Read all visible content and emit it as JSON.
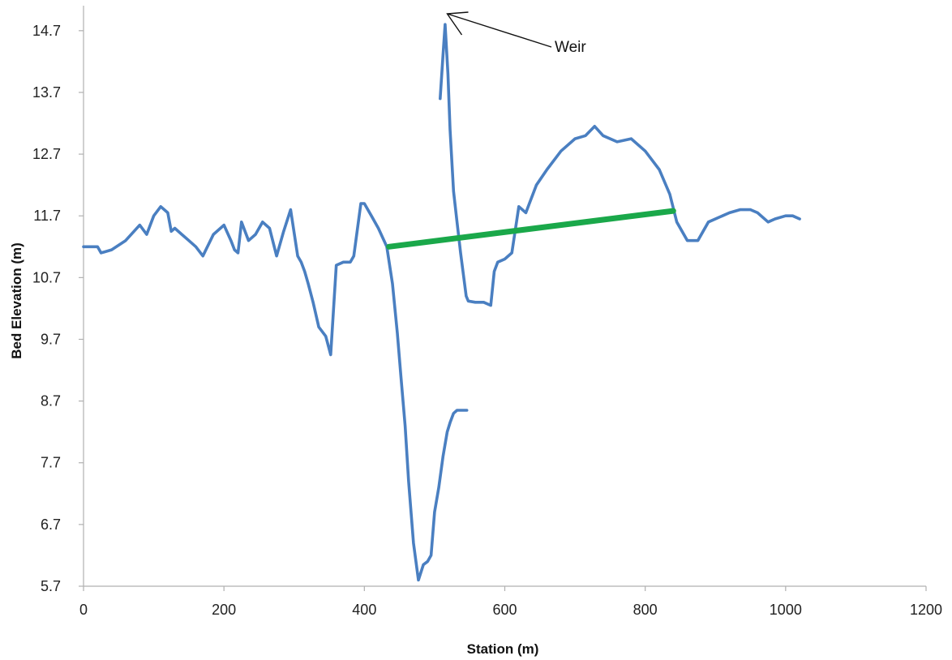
{
  "chart_data": {
    "type": "line",
    "title": "",
    "xlabel": "Station (m)",
    "ylabel": "Bed Elevation  (m)",
    "xlim": [
      0,
      1200
    ],
    "ylim": [
      5.7,
      15.0
    ],
    "xticks": [
      0,
      200,
      400,
      600,
      800,
      1000,
      1200
    ],
    "xtick_labels": [
      "0",
      "200",
      "400",
      "600",
      "800",
      "1000",
      "1200"
    ],
    "yticks": [
      5.7,
      6.7,
      7.7,
      8.7,
      9.7,
      10.7,
      11.7,
      12.7,
      13.7,
      14.7
    ],
    "ytick_labels": [
      "5.7",
      "6.7",
      "7.7",
      "8.7",
      "9.7",
      "10.7",
      "11.7",
      "12.7",
      "13.7",
      "14.7"
    ],
    "grid": false,
    "legend": "none",
    "colors": {
      "profile": "#4a7fc1",
      "line": "#1aa84a",
      "annotation": "#111111",
      "axis": "#b0b0b0"
    },
    "series": [
      {
        "x": [
          0,
          20,
          25,
          40,
          60,
          80,
          90,
          100,
          110,
          120,
          125,
          130,
          140,
          150,
          160,
          170,
          185,
          200,
          210,
          215,
          220,
          225,
          235,
          245,
          255,
          265,
          275,
          285,
          295,
          305,
          310,
          315,
          320,
          327,
          335,
          345,
          352,
          360,
          370,
          380,
          385,
          395,
          400,
          410,
          420,
          432,
          440,
          447,
          452,
          458,
          463,
          470,
          477,
          484,
          490,
          495,
          500,
          506,
          512,
          518,
          522,
          527,
          532,
          537,
          542,
          546
        ],
        "y": [
          11.2,
          11.2,
          11.1,
          11.15,
          11.3,
          11.55,
          11.4,
          11.7,
          11.85,
          11.75,
          11.45,
          11.5,
          11.4,
          11.3,
          11.2,
          11.05,
          11.4,
          11.55,
          11.3,
          11.15,
          11.1,
          11.6,
          11.3,
          11.4,
          11.6,
          11.5,
          11.05,
          11.45,
          11.8,
          11.05,
          10.95,
          10.8,
          10.6,
          10.3,
          9.9,
          9.75,
          9.45,
          10.9,
          10.95,
          10.95,
          11.05,
          11.9,
          11.9,
          11.7,
          11.5,
          11.2,
          10.6,
          9.8,
          9.1,
          8.3,
          7.4,
          6.4,
          5.8,
          6.05,
          6.1,
          6.2,
          6.9,
          7.3,
          7.8,
          8.2,
          8.35,
          8.5,
          8.55,
          8.55,
          8.55,
          8.55
        ]
      },
      {
        "x": [
          508,
          512,
          515,
          519,
          522,
          527,
          532,
          537,
          545,
          548,
          558,
          570,
          580,
          585,
          590,
          600,
          610,
          620,
          630,
          635,
          645,
          660,
          680,
          700,
          715,
          728,
          740,
          760,
          780,
          800,
          820,
          835,
          845,
          860,
          875,
          890,
          910,
          920,
          935,
          950,
          960,
          975,
          985,
          1000,
          1010,
          1020
        ],
        "y": [
          13.6,
          14.3,
          14.8,
          14.0,
          13.1,
          12.1,
          11.6,
          11.1,
          10.4,
          10.32,
          10.3,
          10.3,
          10.25,
          10.8,
          10.95,
          11.0,
          11.1,
          11.85,
          11.75,
          11.9,
          12.2,
          12.45,
          12.75,
          12.95,
          13.0,
          13.15,
          13.0,
          12.9,
          12.95,
          12.75,
          12.45,
          12.05,
          11.6,
          11.3,
          11.3,
          11.6,
          11.7,
          11.75,
          11.8,
          11.8,
          11.75,
          11.6,
          11.65,
          11.7,
          11.7,
          11.65
        ]
      },
      {
        "x": [
          435,
          840
        ],
        "y": [
          11.2,
          11.78
        ]
      }
    ],
    "annotations": [
      {
        "text": "Weir",
        "points_to": [
          518,
          15.0
        ]
      }
    ]
  }
}
